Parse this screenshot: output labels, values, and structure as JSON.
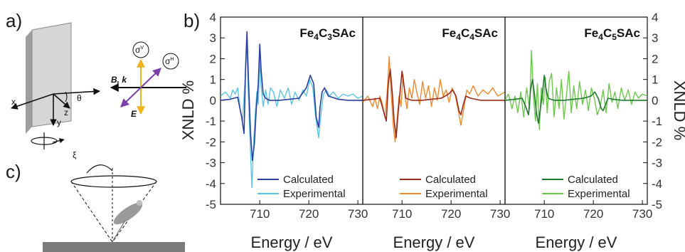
{
  "panels": {
    "a": "a)",
    "b": "b)",
    "c": "c)"
  },
  "schematic_a": {
    "axis_x": "x",
    "axis_y": "y",
    "axis_z": "z",
    "angle": "θ",
    "beam": "B, k",
    "field": "E",
    "sigma_v": "σ",
    "sigma_v_sup": "V",
    "sigma_h": "σ",
    "sigma_h_sup": "H"
  },
  "schematic_c": {
    "angle": "ξ"
  },
  "colors": {
    "fe4c3_calc": "#2b3f9e",
    "fe4c3_exp": "#5bc6e8",
    "fe4c4_calc": "#9a2a1a",
    "fe4c4_exp": "#f0892b",
    "fe4c5_calc": "#1f7a2e",
    "fe4c5_exp": "#6cc84d"
  },
  "chart_data": {
    "type": "line",
    "ylabel_left": "XNLD %",
    "ylabel_right": "XNLD %",
    "ylim": [
      -5,
      4
    ],
    "yticks": [
      "4",
      "3",
      "2",
      "1",
      "0",
      "-1",
      "-2",
      "-3",
      "-4",
      "-5"
    ],
    "grid": false,
    "panels": [
      {
        "title_main": "Fe",
        "title_parts": [
          "Fe",
          "4",
          "C",
          "3",
          "SAc"
        ],
        "xlabel": "Energy / eV",
        "xlim": [
          702,
          731
        ],
        "xticks": [
          "710",
          "720",
          "730"
        ],
        "legend": [
          "Calculated",
          "Experimental"
        ],
        "legend_position": "bottom-right",
        "series": [
          {
            "name": "Calculated",
            "x": [
              702,
              704,
              705.5,
              706.3,
              706.8,
              707.1,
              707.4,
              707.7,
              708.1,
              708.5,
              708.9,
              709.3,
              709.7,
              710.0,
              710.3,
              710.7,
              711.2,
              712,
              714,
              716,
              718,
              719.5,
              720.3,
              721,
              721.5,
              722,
              722.3,
              722.7,
              723.2,
              724,
              726,
              728,
              731
            ],
            "y": [
              0,
              0.05,
              0.15,
              -0.8,
              -1.6,
              1.5,
              3.3,
              1.0,
              -1.5,
              -2.9,
              -2.1,
              -0.4,
              0.8,
              2.7,
              1.4,
              0.3,
              0.1,
              0,
              0,
              0.05,
              0.1,
              0.6,
              1.2,
              0.8,
              -0.8,
              -1.3,
              -0.3,
              0.4,
              0.6,
              0.2,
              0.05,
              0,
              0
            ]
          },
          {
            "name": "Experimental",
            "x": [
              702,
              703,
              704,
              704.5,
              705,
              705.5,
              706,
              706.5,
              707,
              707.3,
              707.6,
              708,
              708.4,
              708.8,
              709.1,
              709.4,
              709.7,
              710,
              710.3,
              710.7,
              711.2,
              711.7,
              712.2,
              712.8,
              713.5,
              714.2,
              715,
              715.8,
              716.5,
              717.2,
              718,
              718.8,
              719.5,
              720.2,
              720.8,
              721.4,
              722,
              722.5,
              723,
              723.6,
              724.2,
              725,
              726,
              727,
              728,
              729,
              730,
              731
            ],
            "y": [
              0.2,
              0.4,
              0.1,
              0.5,
              0.3,
              0.6,
              -0.4,
              -1.0,
              1.0,
              2.9,
              0.8,
              -1.8,
              -4.2,
              -1.8,
              -0.6,
              0.4,
              -0.2,
              2.0,
              0.6,
              -0.3,
              0.5,
              -0.2,
              0.6,
              0.4,
              -0.3,
              0.5,
              0.1,
              0.6,
              -0.2,
              0.4,
              0.0,
              0.5,
              0.2,
              1.0,
              0.6,
              -0.8,
              -1.8,
              -0.6,
              0.3,
              0.5,
              0.2,
              0.4,
              0.1,
              0.3,
              0.2,
              0.3,
              0.1,
              0.2
            ]
          }
        ]
      },
      {
        "title_parts": [
          "Fe",
          "4",
          "C",
          "4",
          "SAc"
        ],
        "xlabel": "Energy / eV",
        "xlim": [
          702,
          731
        ],
        "xticks": [
          "710",
          "720",
          "730"
        ],
        "legend": [
          "Calculated",
          "Experimental"
        ],
        "legend_position": "bottom-right",
        "series": [
          {
            "name": "Calculated",
            "x": [
              702,
              704,
              705.5,
              706.2,
              706.8,
              707.2,
              707.6,
              708.0,
              708.4,
              708.8,
              709.2,
              709.6,
              710.0,
              710.4,
              710.8,
              711.3,
              712,
              714,
              716,
              718,
              719.5,
              720.3,
              721,
              721.6,
              722,
              722.5,
              723,
              724,
              726,
              728,
              731
            ],
            "y": [
              0,
              0.05,
              0.1,
              -0.5,
              -1.0,
              0.8,
              1.5,
              0.4,
              -1.0,
              -1.8,
              -0.6,
              0.4,
              1.4,
              0.7,
              0.1,
              0.05,
              0,
              0,
              0.05,
              0.1,
              0.3,
              0.5,
              0.2,
              -0.5,
              -0.7,
              -0.2,
              0.2,
              0.1,
              0,
              0,
              0
            ]
          },
          {
            "name": "Experimental",
            "x": [
              702,
              703,
              704,
              704.5,
              705,
              705.5,
              706,
              706.5,
              707,
              707.4,
              707.8,
              708.2,
              708.6,
              709,
              709.4,
              709.8,
              710.2,
              710.6,
              711,
              711.5,
              712,
              712.5,
              713,
              713.6,
              714.2,
              714.8,
              715.4,
              716,
              716.6,
              717.2,
              717.8,
              718.4,
              719,
              719.6,
              720.2,
              720.8,
              721.4,
              722,
              722.6,
              723.2,
              723.8,
              724.5,
              725.5,
              726.5,
              727.5,
              728.5,
              729.5,
              731
            ],
            "y": [
              -0.1,
              0.2,
              -0.3,
              0.1,
              -0.4,
              0.2,
              -0.2,
              -0.8,
              0.5,
              2.1,
              0.3,
              -1.2,
              -2.0,
              -0.9,
              0.2,
              -0.3,
              1.2,
              0.2,
              -0.4,
              0.6,
              0.1,
              1.0,
              0.4,
              -0.2,
              0.9,
              0.1,
              0.7,
              -0.3,
              0.6,
              0.0,
              1.0,
              0.2,
              0.5,
              -0.1,
              0.6,
              0.3,
              -0.4,
              -1.2,
              -0.4,
              0.5,
              0.3,
              0.7,
              0.2,
              0.5,
              0.3,
              0.6,
              0.2,
              0.4
            ]
          }
        ]
      },
      {
        "title_parts": [
          "Fe",
          "4",
          "C",
          "5",
          "SAc"
        ],
        "xlabel": "Energy / eV",
        "xlim": [
          702,
          731
        ],
        "xticks": [
          "710",
          "720",
          "730"
        ],
        "legend": [
          "Calculated",
          "Experimental"
        ],
        "legend_position": "bottom-right",
        "series": [
          {
            "name": "Calculated",
            "x": [
              702,
              704,
              705.5,
              706.2,
              706.8,
              707.2,
              707.6,
              708.0,
              708.4,
              708.8,
              709.2,
              709.6,
              710.0,
              710.4,
              710.8,
              711.3,
              712,
              714,
              716,
              718,
              719.5,
              720.3,
              721,
              721.6,
              722,
              722.5,
              723,
              724,
              726,
              728,
              731
            ],
            "y": [
              0,
              0.05,
              0.1,
              -0.3,
              -0.7,
              0.5,
              1.0,
              0.3,
              -0.6,
              -1.1,
              -0.4,
              0.3,
              1.2,
              0.5,
              0.1,
              0.05,
              0,
              0,
              0.05,
              0.1,
              0.2,
              0.4,
              0.1,
              -0.4,
              -0.5,
              -0.2,
              0.1,
              0.05,
              0,
              0,
              0
            ]
          },
          {
            "name": "Experimental",
            "x": [
              702,
              702.7,
              703.4,
              704,
              704.6,
              705.2,
              705.8,
              706.4,
              707,
              707.4,
              707.8,
              708.2,
              708.6,
              709,
              709.4,
              709.8,
              710.2,
              710.6,
              711,
              711.5,
              712,
              712.5,
              713,
              713.5,
              714,
              714.5,
              715,
              715.5,
              716,
              716.6,
              717.2,
              717.8,
              718.4,
              719,
              719.6,
              720.2,
              720.8,
              721.4,
              722,
              722.6,
              723.2,
              723.8,
              724.4,
              725,
              725.7,
              726.4,
              727.1,
              727.8,
              728.5,
              729.2,
              730,
              731
            ],
            "y": [
              0.0,
              0.3,
              -0.4,
              0.2,
              -0.6,
              0.4,
              -0.8,
              0.6,
              -0.4,
              2.4,
              0.2,
              -1.0,
              0.8,
              -1.4,
              0.6,
              -0.2,
              1.1,
              -0.6,
              0.9,
              1.3,
              -0.8,
              0.6,
              -0.4,
              1.0,
              -0.9,
              0.2,
              1.4,
              -0.6,
              0.7,
              -0.4,
              0.9,
              -0.2,
              0.5,
              -0.5,
              0.6,
              0.1,
              -0.7,
              -0.3,
              0.5,
              -0.6,
              0.8,
              -0.1,
              0.4,
              -0.4,
              0.6,
              0.0,
              0.5,
              -0.2,
              0.4,
              0.1,
              0.3,
              0.2
            ]
          }
        ]
      }
    ]
  }
}
